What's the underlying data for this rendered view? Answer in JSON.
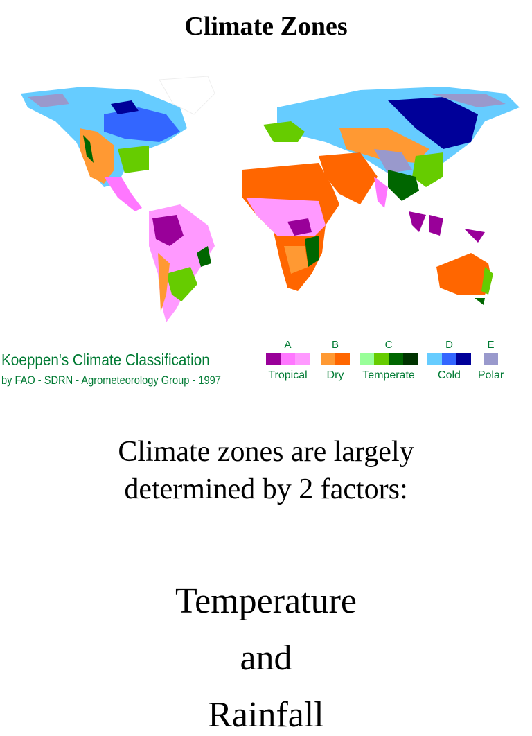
{
  "title": "Climate Zones",
  "map_legend": {
    "title": "Koeppen's Climate Classification",
    "credit": "by FAO - SDRN - Agrometeorology Group - 1997",
    "groups": [
      {
        "letter": "A",
        "label": "Tropical",
        "colors": [
          "#990099",
          "#ff77ff",
          "#ff99ff"
        ]
      },
      {
        "letter": "B",
        "label": "Dry",
        "colors": [
          "#ff9933",
          "#ff6600"
        ]
      },
      {
        "letter": "C",
        "label": "Temperate",
        "colors": [
          "#99ff99",
          "#66cc00",
          "#006600",
          "#003300"
        ]
      },
      {
        "letter": "D",
        "label": "Cold",
        "colors": [
          "#66ccff",
          "#3366ff",
          "#000099"
        ]
      },
      {
        "letter": "E",
        "label": "Polar",
        "colors": [
          "#9999cc"
        ]
      }
    ]
  },
  "intro": [
    "Climate zones are largely",
    "determined by 2 factors:"
  ],
  "factors": [
    "Temperature",
    "and",
    "Rainfall"
  ]
}
